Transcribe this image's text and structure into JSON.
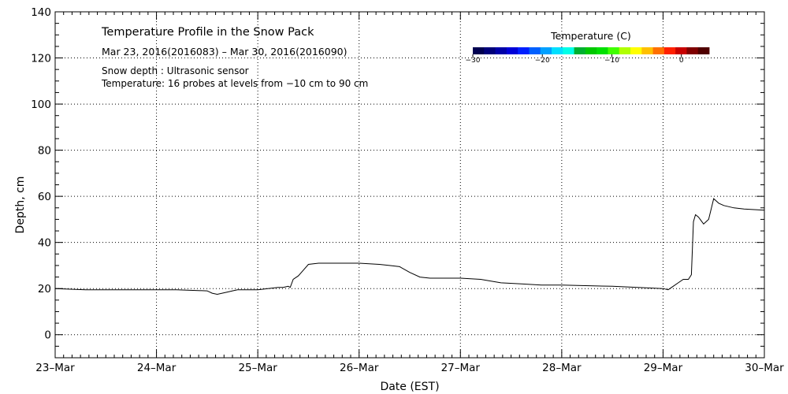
{
  "chart_data": {
    "type": "line",
    "title": "Temperature Profile in the Snow Pack",
    "subtitle": "Mar 23, 2016(2016083) – Mar 30, 2016(2016090)",
    "notes": [
      "Snow depth : Ultrasonic sensor",
      "Temperature: 16 probes at levels from −10 cm to 90 cm"
    ],
    "xlabel": "Date (EST)",
    "ylabel": "Depth, cm",
    "x_ticks": [
      "23–Mar",
      "24–Mar",
      "25–Mar",
      "26–Mar",
      "27–Mar",
      "28–Mar",
      "29–Mar",
      "30–Mar"
    ],
    "xlim": [
      0,
      7
    ],
    "ylim": [
      -10,
      140
    ],
    "y_ticks": [
      0,
      20,
      40,
      60,
      80,
      100,
      120,
      140
    ],
    "grid": true,
    "series": [
      {
        "x": [
          0,
          0.3,
          0.6,
          0.9,
          1.2,
          1.5,
          1.55,
          1.6,
          1.7,
          1.75,
          1.8,
          2.0,
          2.1,
          2.2,
          2.25,
          2.3,
          2.32,
          2.35,
          2.4,
          2.45,
          2.5,
          2.6,
          3.0,
          3.2,
          3.3,
          3.4,
          3.5,
          3.6,
          3.7,
          4.0,
          4.2,
          4.4,
          4.6,
          4.8,
          5.0,
          5.5,
          6.0,
          6.05,
          6.1,
          6.15,
          6.2,
          6.25,
          6.28,
          6.3,
          6.32,
          6.35,
          6.4,
          6.45,
          6.5,
          6.55,
          6.6,
          6.7,
          6.8,
          7.0
        ],
        "values": [
          20,
          19.5,
          19.5,
          19.5,
          19.5,
          19,
          18,
          17.5,
          18.5,
          19,
          19.5,
          19.5,
          20,
          20.5,
          20.5,
          21,
          20.5,
          24,
          25.5,
          28,
          30.5,
          31,
          31,
          30.5,
          30,
          29.5,
          27,
          25,
          24.5,
          24.5,
          24,
          22.5,
          22,
          21.5,
          21.5,
          21,
          20,
          19.5,
          21,
          22.5,
          24,
          24,
          26,
          49,
          52,
          51,
          48,
          50,
          59,
          57,
          56,
          55,
          54.5,
          54
        ]
      }
    ],
    "colorbar": {
      "title": "Temperature (C)",
      "ticks": [
        -30,
        -20,
        -10,
        0
      ],
      "range": [
        -30,
        4
      ],
      "colors": [
        "#000050",
        "#00007a",
        "#0000a8",
        "#0000d8",
        "#0020ff",
        "#0060ff",
        "#00a0ff",
        "#00e0ff",
        "#00ffe8",
        "#00b030",
        "#00c800",
        "#00e000",
        "#40ff00",
        "#b0ff00",
        "#ffff00",
        "#ffc000",
        "#ff7000",
        "#ff2000",
        "#c80000",
        "#800000",
        "#500000"
      ]
    }
  }
}
